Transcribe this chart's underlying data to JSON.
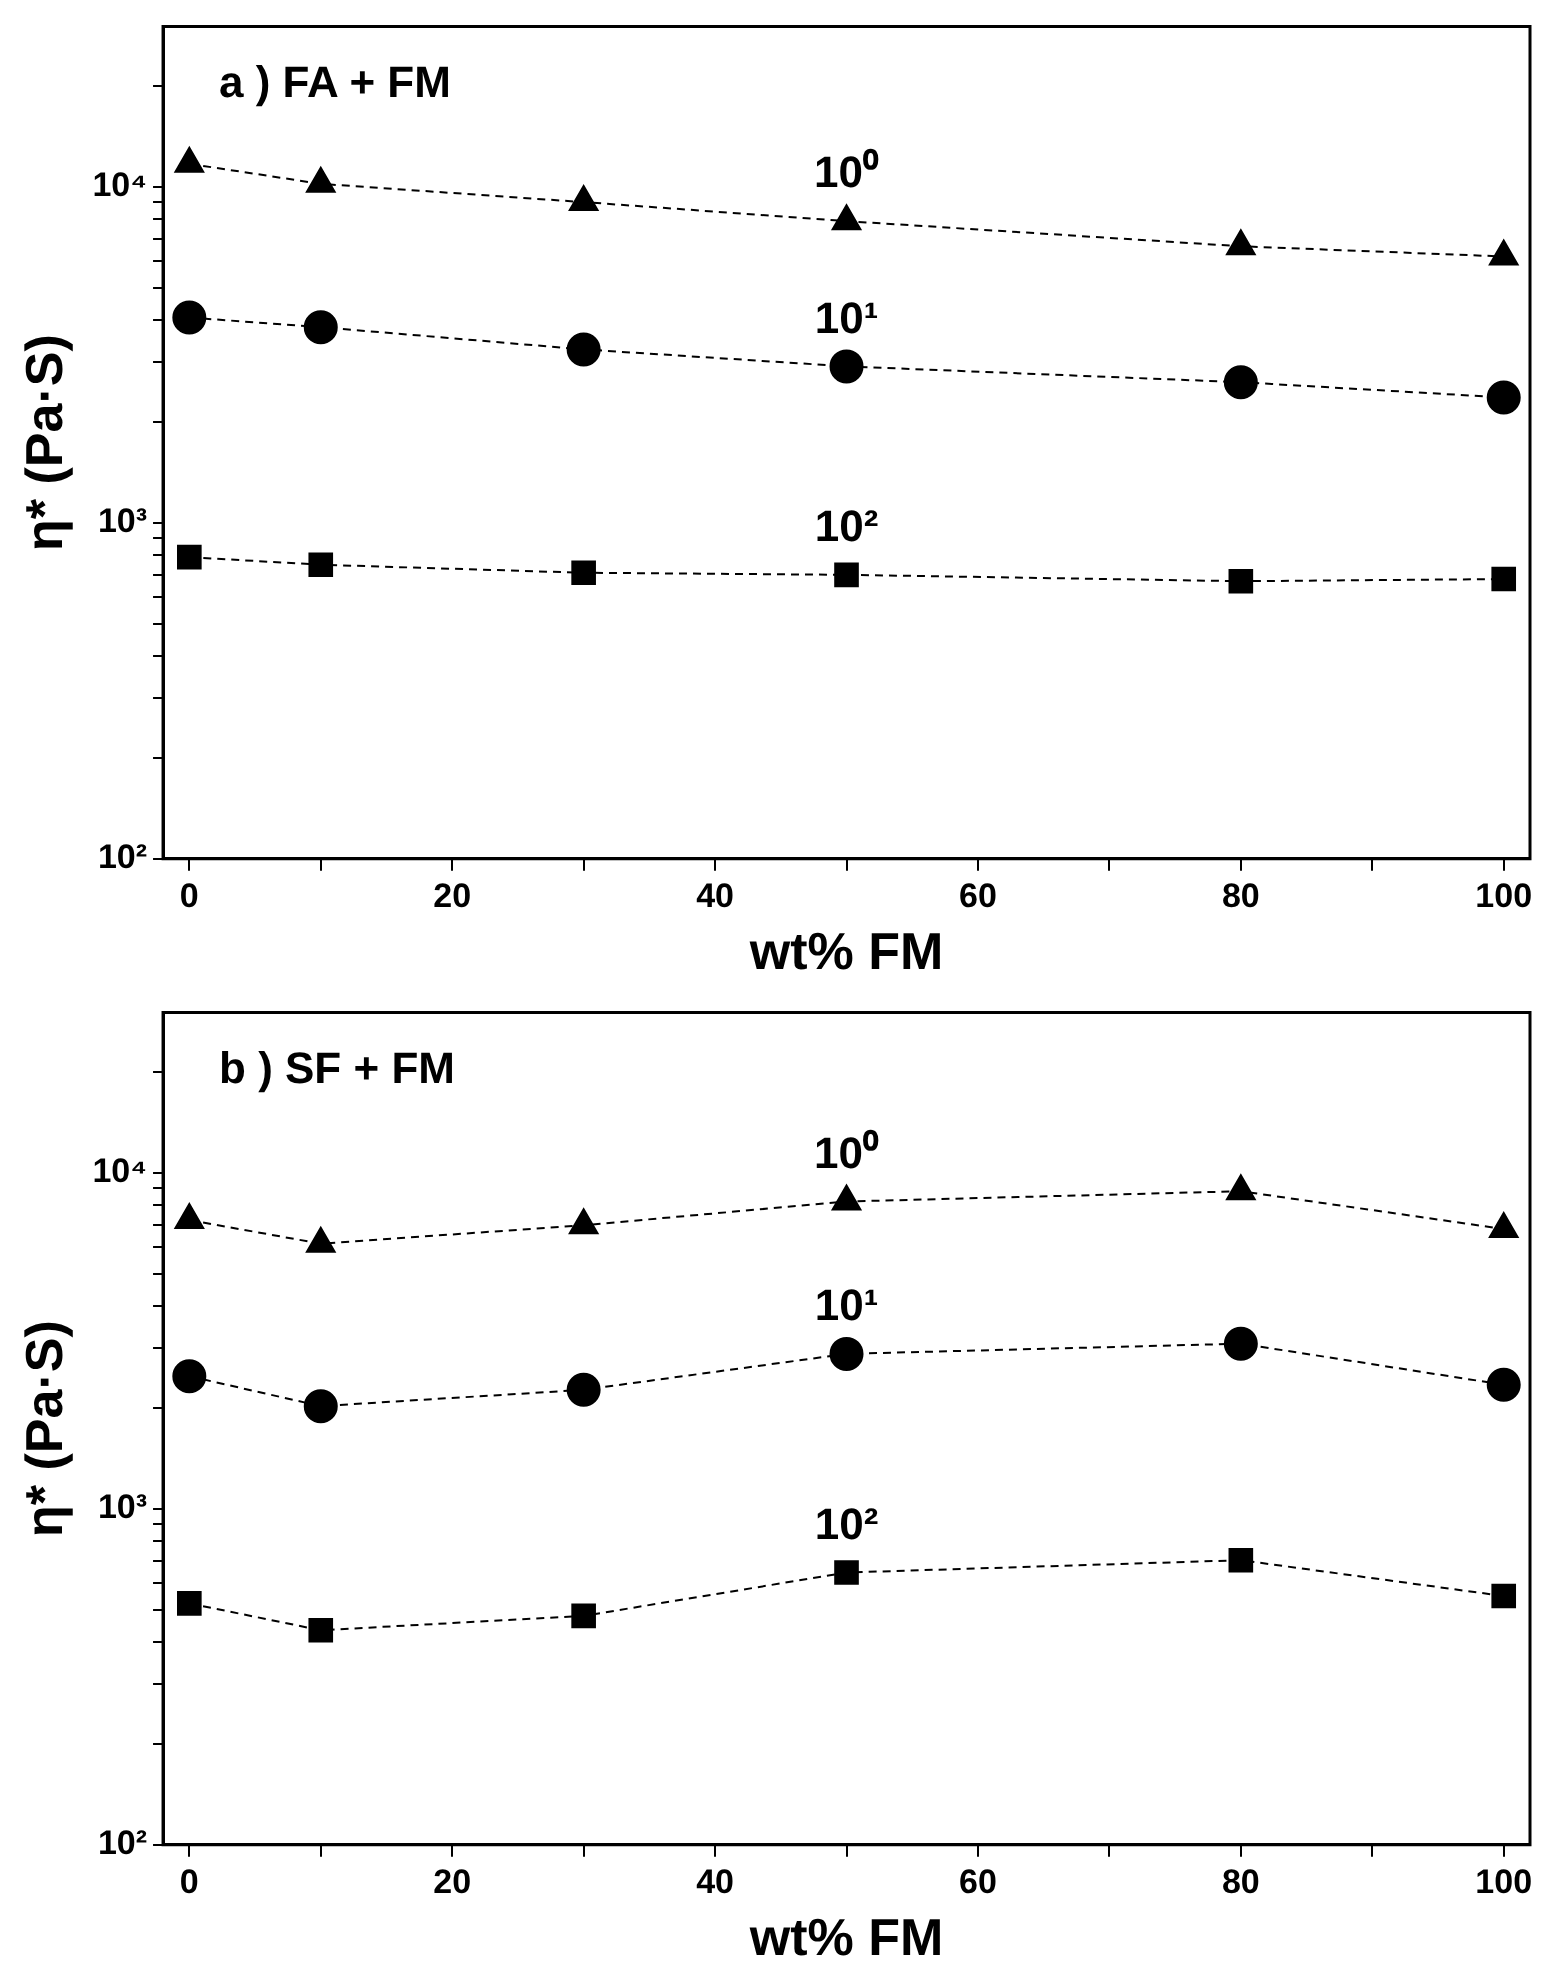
{
  "chart_data": [
    {
      "type": "line",
      "title": "a ) FA + FM",
      "xlabel": "wt% FM",
      "ylabel": "η* (Pa·S)",
      "log": "y",
      "grid": false,
      "legend": false,
      "line_style": "dashed",
      "x": [
        0,
        10,
        30,
        50,
        80,
        100
      ],
      "xlim": [
        -2,
        102
      ],
      "xticks": [
        0,
        {
          "value": 10,
          "label": null
        },
        20,
        {
          "value": 30,
          "label": null
        },
        40,
        {
          "value": 50,
          "label": null
        },
        60,
        {
          "value": 70,
          "label": null
        },
        80,
        {
          "value": 90,
          "label": null
        },
        100
      ],
      "ylim": [
        100,
        30000
      ],
      "yticks": [
        {
          "value": 100,
          "label": "10²"
        },
        {
          "value": 200,
          "label": null
        },
        {
          "value": 300,
          "label": null
        },
        {
          "value": 400,
          "label": null
        },
        {
          "value": 500,
          "label": null
        },
        {
          "value": 600,
          "label": null
        },
        {
          "value": 700,
          "label": null
        },
        {
          "value": 800,
          "label": null
        },
        {
          "value": 900,
          "label": null
        },
        {
          "value": 1000,
          "label": "10³"
        },
        {
          "value": 2000,
          "label": null
        },
        {
          "value": 3000,
          "label": null
        },
        {
          "value": 4000,
          "label": null
        },
        {
          "value": 5000,
          "label": null
        },
        {
          "value": 6000,
          "label": null
        },
        {
          "value": 7000,
          "label": null
        },
        {
          "value": 8000,
          "label": null
        },
        {
          "value": 9000,
          "label": null
        },
        {
          "value": 10000,
          "label": "10⁴"
        },
        {
          "value": 20000,
          "label": null
        }
      ],
      "series": [
        {
          "name": "10⁰",
          "color": "#000000",
          "marker": "triangle",
          "values": [
            11700,
            10200,
            9000,
            7900,
            6650,
            6200
          ]
        },
        {
          "name": "10¹",
          "color": "#000000",
          "marker": "circle",
          "values": [
            4080,
            3820,
            3280,
            2920,
            2620,
            2360
          ]
        },
        {
          "name": "10²",
          "color": "#000000",
          "marker": "square",
          "values": [
            790,
            750,
            710,
            700,
            670,
            680
          ]
        }
      ]
    },
    {
      "type": "line",
      "title": "b ) SF + FM",
      "xlabel": "wt% FM",
      "ylabel": "η* (Pa·S)",
      "log": "y",
      "grid": false,
      "legend": false,
      "line_style": "dashed",
      "x": [
        0,
        10,
        30,
        50,
        80,
        100
      ],
      "xlim": [
        -2,
        102
      ],
      "xticks": [
        0,
        {
          "value": 10,
          "label": null
        },
        20,
        {
          "value": 30,
          "label": null
        },
        40,
        {
          "value": 50,
          "label": null
        },
        60,
        {
          "value": 70,
          "label": null
        },
        80,
        {
          "value": 90,
          "label": null
        },
        100
      ],
      "ylim": [
        100,
        30000
      ],
      "yticks": [
        {
          "value": 100,
          "label": "10²"
        },
        {
          "value": 200,
          "label": null
        },
        {
          "value": 300,
          "label": null
        },
        {
          "value": 400,
          "label": null
        },
        {
          "value": 500,
          "label": null
        },
        {
          "value": 600,
          "label": null
        },
        {
          "value": 700,
          "label": null
        },
        {
          "value": 800,
          "label": null
        },
        {
          "value": 900,
          "label": null
        },
        {
          "value": 1000,
          "label": "10³"
        },
        {
          "value": 2000,
          "label": null
        },
        {
          "value": 3000,
          "label": null
        },
        {
          "value": 4000,
          "label": null
        },
        {
          "value": 5000,
          "label": null
        },
        {
          "value": 6000,
          "label": null
        },
        {
          "value": 7000,
          "label": null
        },
        {
          "value": 8000,
          "label": null
        },
        {
          "value": 9000,
          "label": null
        },
        {
          "value": 10000,
          "label": "10⁴"
        },
        {
          "value": 20000,
          "label": null
        }
      ],
      "series": [
        {
          "name": "10⁰",
          "color": "#000000",
          "marker": "triangle",
          "values": [
            7230,
            6150,
            6980,
            8210,
            8810,
            6800
          ]
        },
        {
          "name": "10¹",
          "color": "#000000",
          "marker": "circle",
          "values": [
            2480,
            2020,
            2260,
            2890,
            3100,
            2340
          ]
        },
        {
          "name": "10²",
          "color": "#000000",
          "marker": "square",
          "values": [
            523,
            435,
            480,
            646,
            703,
            550
          ]
        }
      ]
    }
  ]
}
